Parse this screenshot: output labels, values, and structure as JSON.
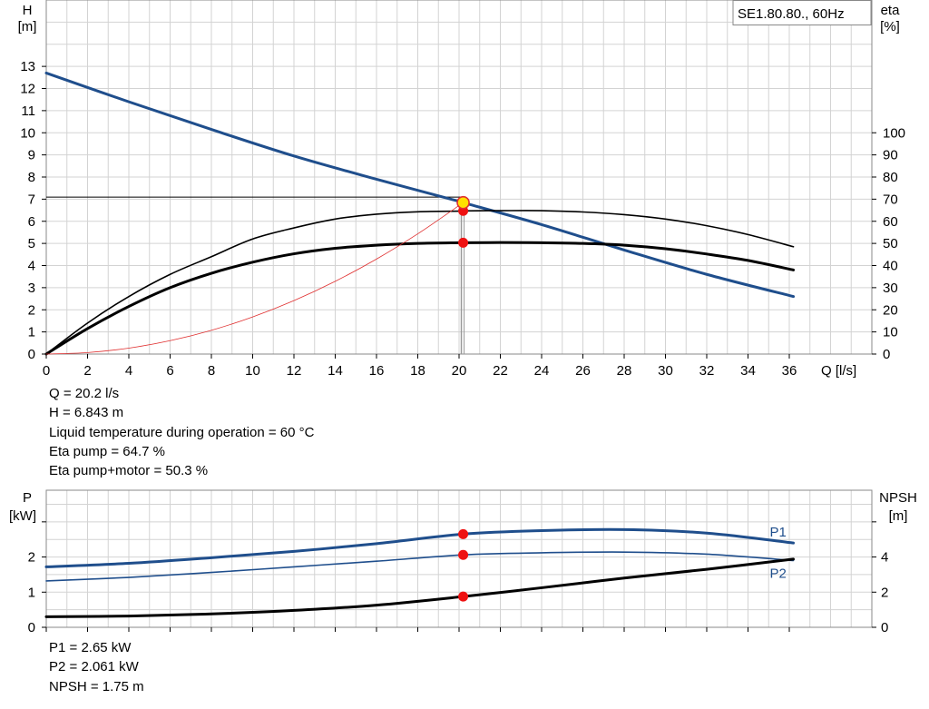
{
  "chart_data": [
    {
      "type": "line",
      "model_label": "SE1.80.80., 60Hz",
      "xlabel": "Q [l/s]",
      "ylabel_left": [
        "H",
        "[m]"
      ],
      "ylabel_right": [
        "eta",
        "[%]"
      ],
      "xlim": [
        0,
        40
      ],
      "ylim_left": [
        0,
        16
      ],
      "ylim_right": [
        0,
        160
      ],
      "x_ticks": [
        "0",
        "2",
        "4",
        "6",
        "8",
        "10",
        "12",
        "14",
        "16",
        "18",
        "20",
        "22",
        "24",
        "26",
        "28",
        "30",
        "32",
        "34",
        "36"
      ],
      "y_ticks_left": [
        "0",
        "1",
        "2",
        "3",
        "4",
        "5",
        "6",
        "7",
        "8",
        "9",
        "10",
        "11",
        "12",
        "13"
      ],
      "y_ticks_right": [
        "0",
        "10",
        "20",
        "30",
        "40",
        "50",
        "60",
        "70",
        "80",
        "90",
        "100"
      ],
      "grid": true,
      "series": [
        {
          "key": "H",
          "axis": "left",
          "color": "#1f4e8c",
          "width": 3,
          "x": [
            0,
            4,
            8,
            12,
            16,
            20,
            20.2,
            24,
            28,
            32,
            36.2
          ],
          "y": [
            12.7,
            11.4,
            10.15,
            8.95,
            7.9,
            6.9,
            6.843,
            5.85,
            4.7,
            3.6,
            2.6
          ]
        },
        {
          "key": "eta_pump",
          "axis": "right",
          "color": "#000000",
          "width": 1.6,
          "x": [
            0,
            2,
            4,
            6,
            8,
            10,
            12,
            14,
            16,
            18,
            20,
            20.2,
            22,
            24,
            26,
            28,
            30,
            32,
            34,
            36.2
          ],
          "y": [
            0,
            14,
            26,
            36,
            44,
            52,
            57,
            61,
            63.2,
            64.3,
            64.6,
            64.7,
            64.8,
            64.8,
            64.2,
            63,
            61,
            58,
            54,
            48.5
          ]
        },
        {
          "key": "eta_pump_motor",
          "axis": "right",
          "color": "#000000",
          "width": 3,
          "x": [
            0,
            2,
            4,
            6,
            8,
            10,
            12,
            14,
            16,
            18,
            20,
            20.2,
            22,
            24,
            26,
            28,
            30,
            32,
            34,
            36.2
          ],
          "y": [
            0,
            11.5,
            21.5,
            30,
            36.5,
            41.5,
            45.3,
            47.8,
            49.2,
            50,
            50.3,
            50.3,
            50.4,
            50.3,
            50,
            49.2,
            47.6,
            45.2,
            42.3,
            38
          ]
        },
        {
          "key": "system_curve",
          "axis": "left",
          "color": "#e03030",
          "width": 0.8,
          "x": [
            0,
            2,
            4,
            6,
            8,
            10,
            12,
            14,
            16,
            18,
            20.2
          ],
          "y": [
            0,
            0.067,
            0.268,
            0.604,
            1.073,
            1.677,
            2.415,
            3.287,
            4.293,
            5.433,
            6.843
          ]
        }
      ],
      "operating_point": {
        "q": 20.2,
        "h": 6.843,
        "eta_pump": 64.7,
        "eta_pump_motor": 50.3
      },
      "info_lines": [
        "Q = 20.2 l/s",
        "H = 6.843 m",
        "Liquid temperature during operation = 60 °C",
        "Eta pump = 64.7 %",
        "Eta pump+motor = 50.3 %"
      ]
    },
    {
      "type": "line",
      "ylabel_left": [
        "P",
        "[kW]"
      ],
      "ylabel_right": [
        "NPSH",
        "[m]"
      ],
      "xlim": [
        0,
        40
      ],
      "ylim_left": [
        0,
        3.9
      ],
      "ylim_right": [
        0,
        7.8
      ],
      "y_ticks_left": [
        "0",
        "1",
        "2"
      ],
      "y_ticks_right": [
        "0",
        "2",
        "4"
      ],
      "grid": true,
      "series": [
        {
          "key": "P1",
          "name": "P1",
          "axis": "left",
          "color": "#1f4e8c",
          "width": 3,
          "x": [
            0,
            4,
            8,
            12,
            16,
            20.2,
            24,
            28,
            32,
            36.2
          ],
          "y": [
            1.72,
            1.82,
            1.98,
            2.16,
            2.38,
            2.65,
            2.75,
            2.78,
            2.68,
            2.4
          ]
        },
        {
          "key": "P2",
          "name": "P2",
          "axis": "left",
          "color": "#1f4e8c",
          "width": 1.6,
          "x": [
            0,
            4,
            8,
            12,
            16,
            20.2,
            24,
            28,
            32,
            36.2
          ],
          "y": [
            1.32,
            1.42,
            1.56,
            1.72,
            1.88,
            2.061,
            2.12,
            2.14,
            2.08,
            1.9
          ]
        },
        {
          "key": "NPSH",
          "axis": "right",
          "color": "#000000",
          "width": 3,
          "x": [
            0,
            4,
            8,
            12,
            16,
            20.2,
            24,
            28,
            32,
            36.2
          ],
          "y": [
            0.6,
            0.64,
            0.76,
            0.96,
            1.26,
            1.75,
            2.25,
            2.8,
            3.3,
            3.88
          ]
        }
      ],
      "operating_point": {
        "q": 20.2,
        "p1": 2.65,
        "p2": 2.061,
        "npsh": 1.75
      },
      "info_lines": [
        "P1 = 2.65 kW",
        "P2 = 2.061 kW",
        "NPSH = 1.75 m"
      ]
    }
  ]
}
